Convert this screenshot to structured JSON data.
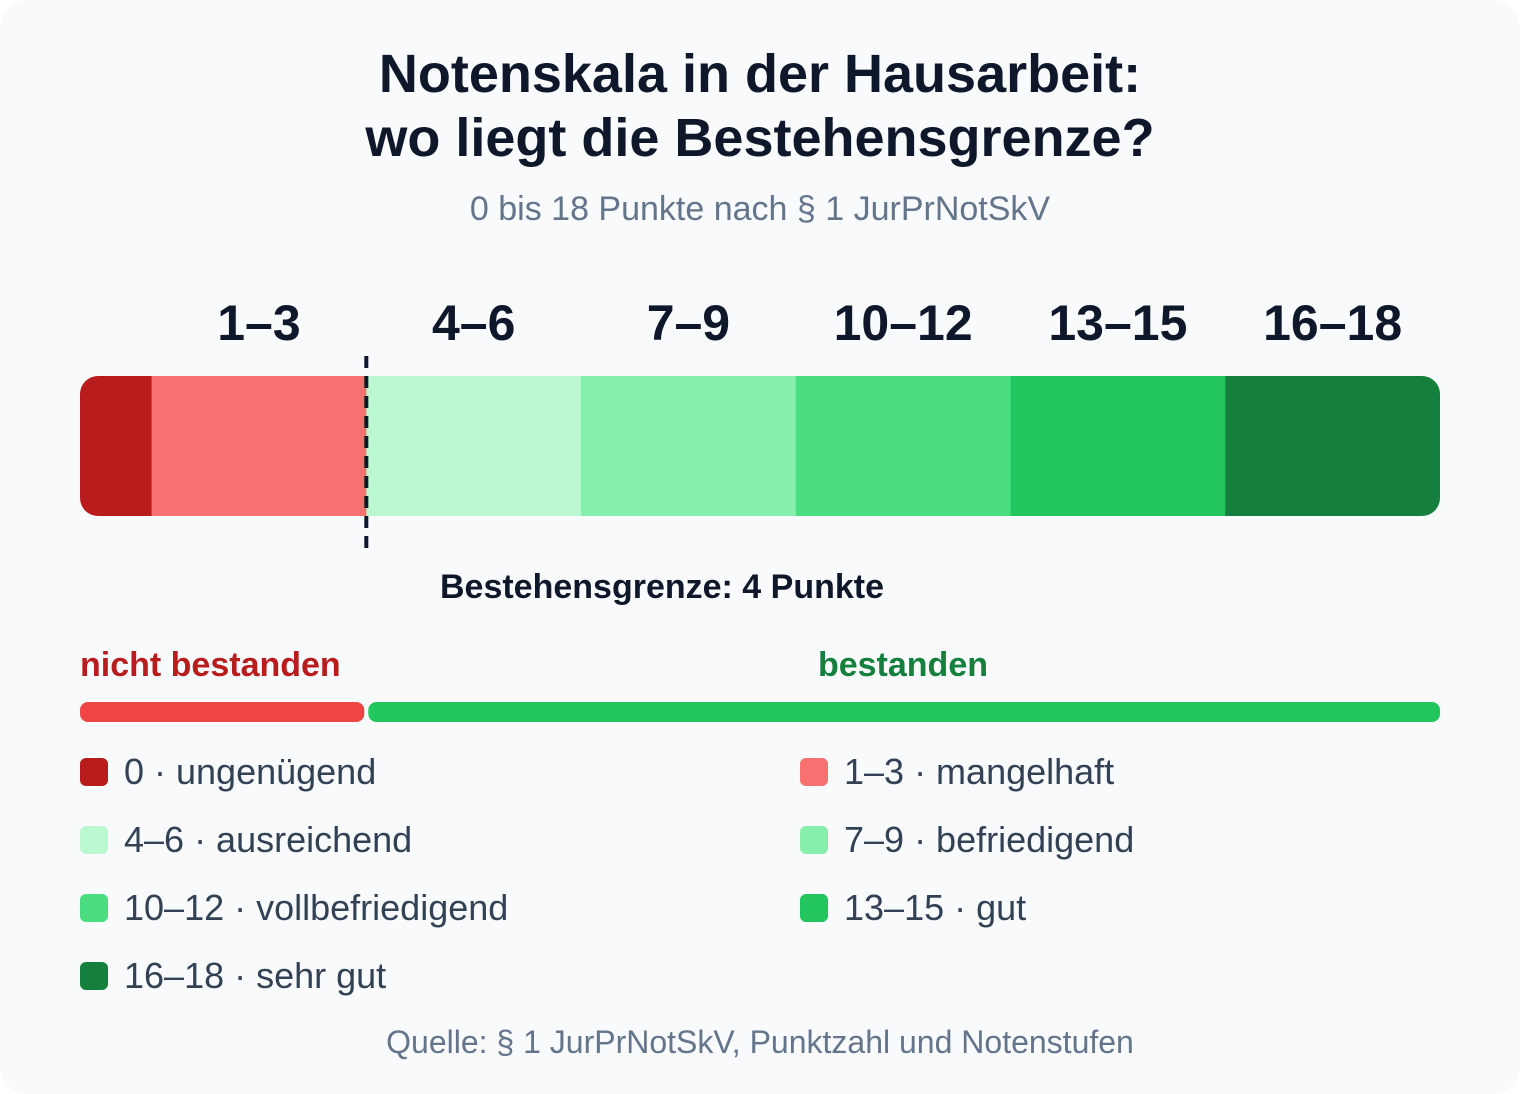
{
  "title_line1": "Notenskala in der Hausarbeit:",
  "title_line2": "wo liegt die Bestehensgrenze?",
  "subtitle": "0 bis 18 Punkte nach § 1 JurPrNotSkV",
  "chart_data": {
    "type": "bar",
    "orientation": "horizontal-segmented",
    "x_range": [
      0,
      18
    ],
    "categories": [
      "0",
      "1–3",
      "4–6",
      "7–9",
      "10–12",
      "13–15",
      "16–18"
    ],
    "band_labels": [
      "1–3",
      "4–6",
      "7–9",
      "10–12",
      "13–15",
      "16–18"
    ],
    "segments": [
      {
        "label": "ungenügend",
        "range": "0",
        "from": 0,
        "to": 1,
        "color": "#b91c1c"
      },
      {
        "label": "mangelhaft",
        "range": "1–3",
        "from": 1,
        "to": 4,
        "color": "#f87171"
      },
      {
        "label": "ausreichend",
        "range": "4–6",
        "from": 4,
        "to": 7,
        "color": "#bbf7d0"
      },
      {
        "label": "befriedigend",
        "range": "7–9",
        "from": 7,
        "to": 10,
        "color": "#86efac"
      },
      {
        "label": "vollbefriedigend",
        "range": "10–12",
        "from": 10,
        "to": 13,
        "color": "#4ade80"
      },
      {
        "label": "gut",
        "range": "13–15",
        "from": 13,
        "to": 16,
        "color": "#22c55e"
      },
      {
        "label": "sehr gut",
        "range": "16–18",
        "from": 16,
        "to": 19,
        "color": "#15803d"
      }
    ],
    "threshold": {
      "value": 4,
      "label": "Bestehensgrenze: 4 Punkte"
    },
    "status": {
      "fail_label": "nicht bestanden",
      "fail_color": "#ef4444",
      "pass_label": "bestanden",
      "pass_color": "#22c55e"
    }
  },
  "legend": [
    {
      "text": "0 · ungenügend",
      "color": "#b91c1c"
    },
    {
      "text": "1–3 · mangelhaft",
      "color": "#f87171"
    },
    {
      "text": "4–6 · ausreichend",
      "color": "#bbf7d0"
    },
    {
      "text": "7–9 · befriedigend",
      "color": "#86efac"
    },
    {
      "text": "10–12 · vollbefriedigend",
      "color": "#4ade80"
    },
    {
      "text": "13–15 · gut",
      "color": "#22c55e"
    },
    {
      "text": "16–18 · sehr gut",
      "color": "#15803d"
    }
  ],
  "source": "Quelle: § 1 JurPrNotSkV, Punktzahl und Notenstufen"
}
